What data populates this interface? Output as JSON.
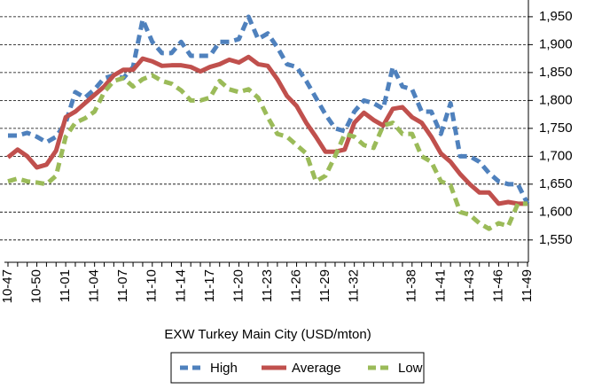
{
  "chart_data": {
    "type": "line",
    "x_label": "EXW Turkey Main City (USD/mton)",
    "categories": [
      "10-47",
      null,
      null,
      "10-50",
      null,
      null,
      "11-01",
      null,
      null,
      "11-04",
      null,
      null,
      "11-07",
      null,
      null,
      "11-10",
      null,
      null,
      "11-14",
      null,
      null,
      "11-17",
      null,
      null,
      "11-20",
      null,
      null,
      "11-23",
      null,
      null,
      "11-26",
      null,
      null,
      "11-29",
      null,
      null,
      "11-32",
      null,
      null,
      null,
      null,
      null,
      "11-38",
      null,
      null,
      "11-41",
      null,
      null,
      "11-43",
      null,
      null,
      "11-46",
      null,
      null,
      "11-49"
    ],
    "series": [
      {
        "name": "High",
        "color": "#4f81bd",
        "dashed": true,
        "values": [
          1737,
          1737,
          1742,
          1735,
          1725,
          1735,
          1760,
          1815,
          1805,
          1820,
          1840,
          1845,
          1840,
          1860,
          1945,
          1905,
          1885,
          1885,
          1905,
          1880,
          1880,
          1880,
          1905,
          1905,
          1910,
          1950,
          1910,
          1920,
          1895,
          1865,
          1860,
          1835,
          1805,
          1775,
          1750,
          1745,
          1780,
          1800,
          1795,
          1785,
          1860,
          1825,
          1820,
          1780,
          1780,
          1740,
          1795,
          1700,
          1700,
          1690,
          1670,
          1655,
          1650,
          1650,
          1615
        ]
      },
      {
        "name": "Average",
        "color": "#c0504d",
        "dashed": false,
        "values": [
          1698,
          1712,
          1700,
          1680,
          1685,
          1710,
          1770,
          1780,
          1795,
          1810,
          1825,
          1845,
          1855,
          1855,
          1875,
          1870,
          1862,
          1863,
          1863,
          1860,
          1852,
          1860,
          1865,
          1873,
          1868,
          1878,
          1865,
          1862,
          1838,
          1808,
          1790,
          1760,
          1735,
          1708,
          1708,
          1712,
          1760,
          1778,
          1765,
          1755,
          1785,
          1788,
          1770,
          1760,
          1735,
          1705,
          1690,
          1668,
          1650,
          1635,
          1635,
          1615,
          1618,
          1615,
          1615
        ]
      },
      {
        "name": "Low",
        "color": "#9bbb59",
        "dashed": true,
        "values": [
          1655,
          1660,
          1655,
          1653,
          1650,
          1665,
          1735,
          1760,
          1768,
          1780,
          1815,
          1835,
          1840,
          1825,
          1838,
          1845,
          1835,
          1830,
          1818,
          1800,
          1800,
          1805,
          1835,
          1820,
          1815,
          1820,
          1805,
          1770,
          1740,
          1735,
          1720,
          1705,
          1655,
          1665,
          1700,
          1740,
          1735,
          1720,
          1715,
          1755,
          1760,
          1740,
          1740,
          1700,
          1690,
          1655,
          1648,
          1600,
          1595,
          1580,
          1570,
          1580,
          1575,
          1615,
          1615
        ]
      }
    ],
    "ylim": [
      1510,
      1980
    ],
    "yticks": [
      {
        "value": 1550,
        "label": "1,550"
      },
      {
        "value": 1600,
        "label": "1,600"
      },
      {
        "value": 1650,
        "label": "1,650"
      },
      {
        "value": 1700,
        "label": "1,700"
      },
      {
        "value": 1750,
        "label": "1,750"
      },
      {
        "value": 1800,
        "label": "1,800"
      },
      {
        "value": 1850,
        "label": "1,850"
      },
      {
        "value": 1900,
        "label": "1,900"
      },
      {
        "value": 1950,
        "label": "1,950"
      }
    ],
    "grid": true,
    "legend": "bottom"
  }
}
